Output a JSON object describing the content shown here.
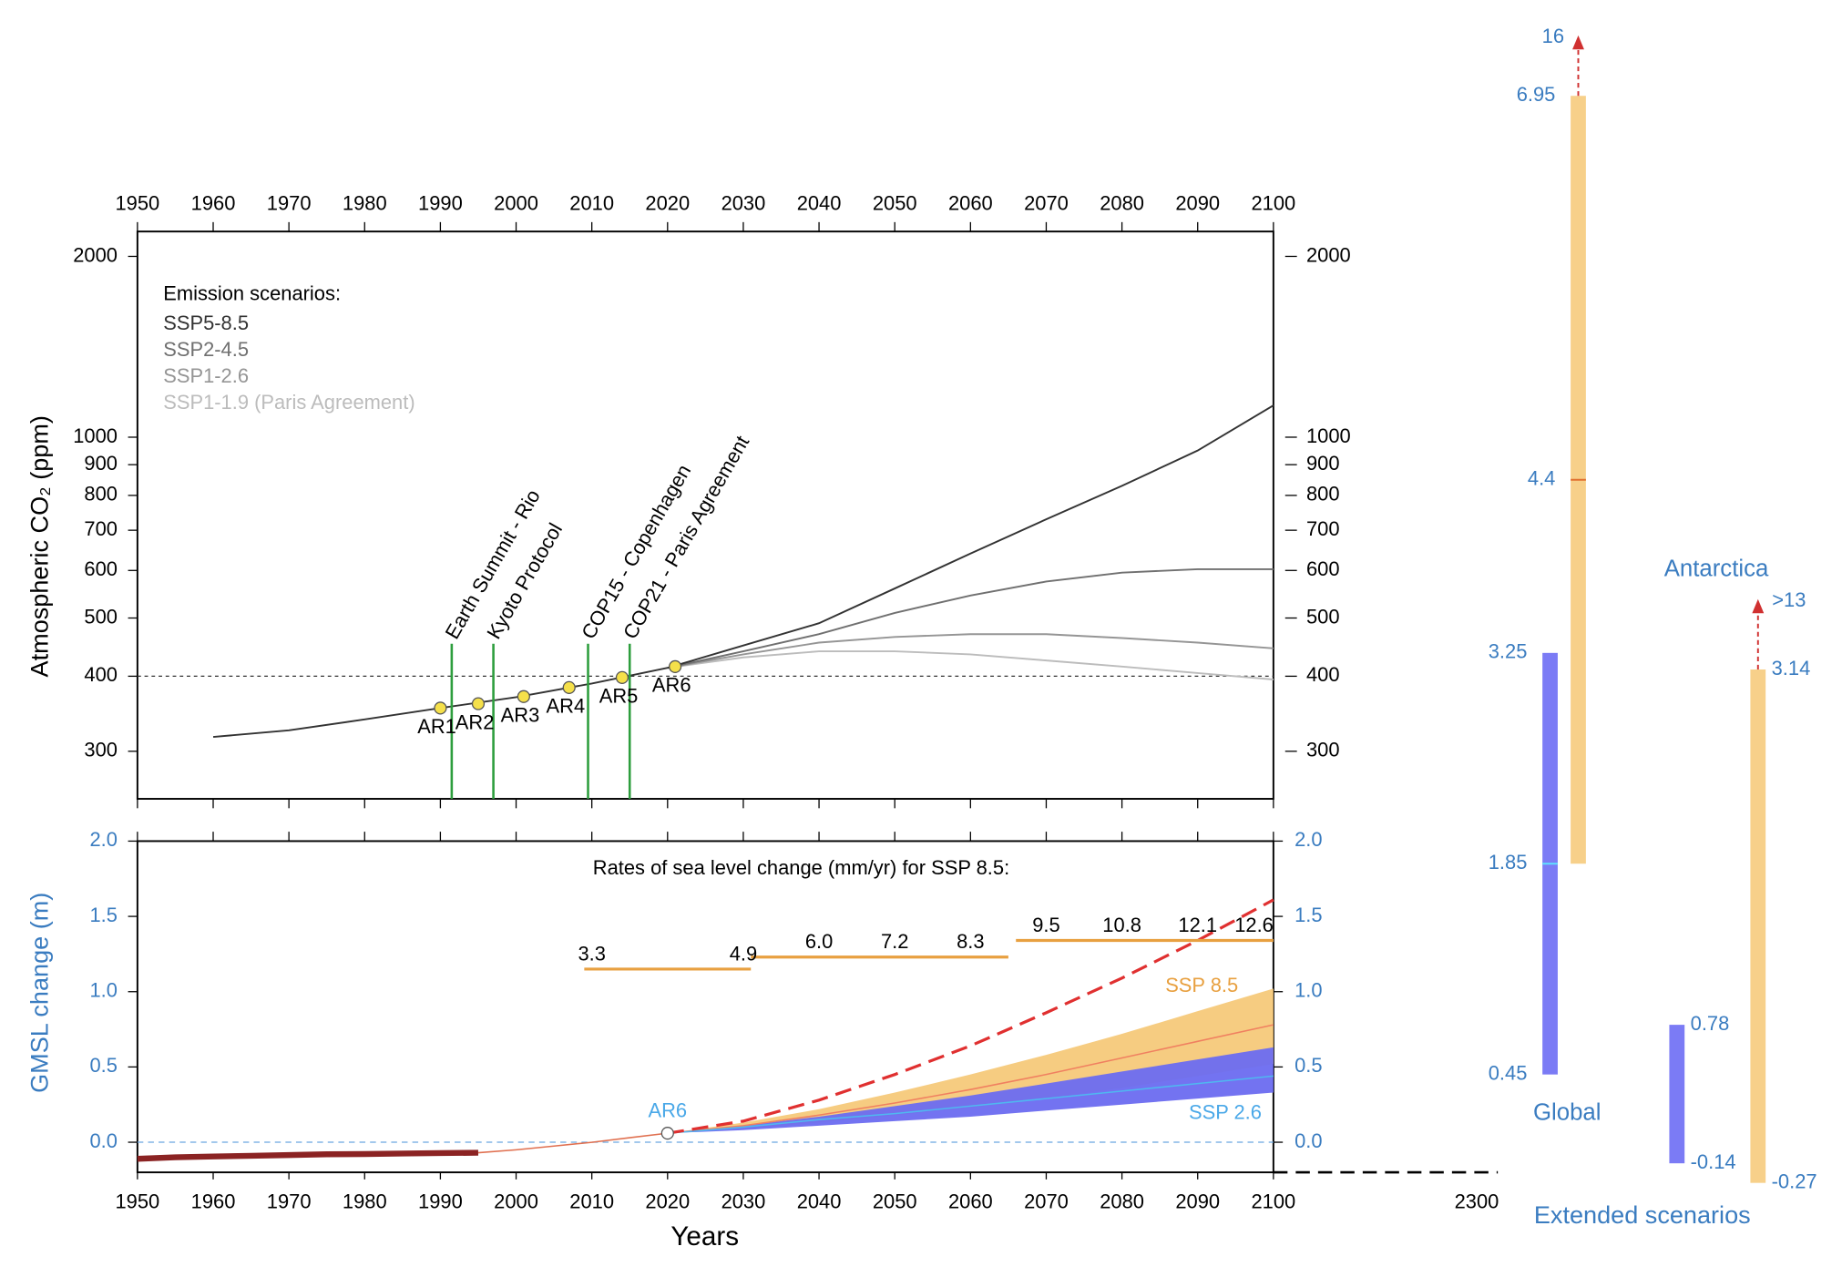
{
  "chart_data": [
    {
      "type": "line",
      "y_scale": "log",
      "ylabel": "Atmospheric CO₂ (ppm)",
      "xlim": [
        1950,
        2100
      ],
      "xticks": [
        1950,
        1960,
        1970,
        1980,
        1990,
        2000,
        2010,
        2020,
        2030,
        2040,
        2050,
        2060,
        2070,
        2080,
        2090,
        2100
      ],
      "ylim": [
        250,
        2200
      ],
      "yticks": [
        300,
        400,
        500,
        600,
        700,
        800,
        900,
        1000,
        2000
      ],
      "hline": 400,
      "legend_title": "Emission scenarios:",
      "x": [
        1960,
        1970,
        1980,
        1990,
        2000,
        2010,
        2020,
        2030,
        2040,
        2050,
        2060,
        2070,
        2080,
        2090,
        2100
      ],
      "series": [
        {
          "name": "SSP5-8.5",
          "color": "#333333",
          "values": [
            317,
            325,
            339,
            354,
            369,
            389,
            413,
            450,
            490,
            560,
            640,
            730,
            830,
            950,
            1130
          ]
        },
        {
          "name": "SSP2-4.5",
          "color": "#707070",
          "values": [
            null,
            null,
            null,
            null,
            null,
            null,
            413,
            440,
            470,
            510,
            545,
            575,
            595,
            603,
            603
          ]
        },
        {
          "name": "SSP1-2.6",
          "color": "#959595",
          "values": [
            null,
            null,
            null,
            null,
            null,
            null,
            413,
            435,
            455,
            465,
            470,
            470,
            463,
            455,
            445
          ]
        },
        {
          "name": "SSP1-1.9 (Paris Agreement)",
          "color": "#bcbcbc",
          "values": [
            null,
            null,
            null,
            null,
            null,
            null,
            413,
            430,
            440,
            440,
            435,
            425,
            415,
            405,
            395
          ]
        }
      ],
      "markers": {
        "color": "#f5e04a",
        "labels": [
          "AR1",
          "AR2",
          "AR3",
          "AR4",
          "AR5",
          "AR6"
        ],
        "x": [
          1990,
          1995,
          2001,
          2007,
          2014,
          2021
        ],
        "values": [
          354,
          360,
          370,
          383,
          398,
          415
        ]
      },
      "events": {
        "color": "#2e9e3e",
        "labels": [
          "Earth Summit - Rio",
          "Kyoto Protocol",
          "COP15 - Copenhagen",
          "COP21 - Paris Agreement"
        ],
        "x": [
          1991.5,
          1997,
          2009.5,
          2015
        ]
      }
    },
    {
      "type": "sea_level",
      "ylabel": "GMSL change (m)",
      "xlabel": "Years",
      "xlim": [
        1950,
        2100
      ],
      "xticks": [
        1950,
        1960,
        1970,
        1980,
        1990,
        2000,
        2010,
        2020,
        2030,
        2040,
        2050,
        2060,
        2070,
        2080,
        2090,
        2100
      ],
      "ylim": [
        -0.2,
        2.0
      ],
      "yticks": [
        {
          "value": 0,
          "label": "0.0"
        },
        0.5,
        {
          "value": 1,
          "label": "1.0"
        },
        1.5,
        {
          "value": 2,
          "label": "2.0"
        }
      ],
      "hline": 0,
      "observed": {
        "color": "#8b2323",
        "x": [
          1950,
          1955,
          1960,
          1965,
          1970,
          1975,
          1980,
          1985,
          1990,
          1995
        ],
        "values": [
          -0.11,
          -0.1,
          -0.095,
          -0.09,
          -0.085,
          -0.08,
          -0.078,
          -0.075,
          -0.072,
          -0.07
        ]
      },
      "reconstruction": {
        "color": "#e07050",
        "x": [
          1995,
          2000,
          2005,
          2010,
          2015,
          2020
        ],
        "values": [
          -0.07,
          -0.05,
          -0.025,
          0,
          0.03,
          0.06
        ]
      },
      "high_end": {
        "color": "#e03030",
        "x": [
          2020,
          2030,
          2040,
          2050,
          2060,
          2070,
          2080,
          2090,
          2100
        ],
        "values": [
          0.06,
          0.14,
          0.28,
          0.45,
          0.64,
          0.86,
          1.09,
          1.34,
          1.61
        ]
      },
      "series": [
        {
          "name": "SSP 8.5",
          "color": "#f5c97a",
          "line_color": "#f08060",
          "label_color": "#e8a040",
          "x": [
            2020,
            2030,
            2040,
            2050,
            2060,
            2070,
            2080,
            2090,
            2100
          ],
          "values": [
            0.06,
            0.11,
            0.18,
            0.26,
            0.35,
            0.45,
            0.56,
            0.67,
            0.78
          ],
          "lower": [
            0.06,
            0.09,
            0.13,
            0.18,
            0.23,
            0.29,
            0.36,
            0.44,
            0.52
          ],
          "upper": [
            0.06,
            0.13,
            0.22,
            0.33,
            0.45,
            0.58,
            0.72,
            0.87,
            1.02
          ]
        },
        {
          "name": "SSP 2.6",
          "color": "#6b6bf0",
          "line_color": "#4fb8f0",
          "label_color": "#4aa8e8",
          "x": [
            2020,
            2030,
            2040,
            2050,
            2060,
            2070,
            2080,
            2090,
            2100
          ],
          "values": [
            0.06,
            0.1,
            0.15,
            0.19,
            0.24,
            0.29,
            0.34,
            0.39,
            0.44
          ],
          "lower": [
            0.06,
            0.08,
            0.11,
            0.14,
            0.17,
            0.21,
            0.25,
            0.29,
            0.33
          ],
          "upper": [
            0.06,
            0.11,
            0.17,
            0.24,
            0.31,
            0.39,
            0.47,
            0.55,
            0.63
          ]
        }
      ],
      "ar6": {
        "label": "AR6",
        "x": 2020,
        "value": 0.06
      },
      "rates": {
        "title": "Rates of sea level change (mm/yr) for SSP 8.5:",
        "color": "#e8a040",
        "segments": [
          [
            2009,
            2031
          ],
          [
            2031,
            2065
          ],
          [
            2066,
            2100
          ]
        ],
        "years": [
          2010,
          2030,
          2040,
          2050,
          2060,
          2070,
          2080,
          2090,
          2100
        ],
        "rates": [
          3.3,
          4.9,
          {
            "value": 6,
            "label": "6.0"
          },
          7.2,
          8.3,
          9.5,
          10.8,
          12.1,
          12.6
        ]
      }
    },
    {
      "type": "range",
      "title": "Extended scenarios",
      "x_tick": 2300,
      "groups": [
        {
          "name": "Global",
          "bars": [
            {
              "color": "#7b7bf5",
              "low": 0.45,
              "high": 3.25,
              "median": 1.85,
              "median_color": "#60e0ff"
            },
            {
              "color": "#f7d08a",
              "low": 1.85,
              "high": 6.95,
              "median": 4.4,
              "median_color": "#e07030",
              "beyond": 16
            }
          ]
        },
        {
          "name": "Antarctica",
          "bars": [
            {
              "color": "#7b7bf5",
              "low": -0.14,
              "high": 0.78
            },
            {
              "color": "#f7d08a",
              "low": -0.27,
              "high": 3.14,
              "beyond": {
                "value": 13,
                "label": ">13"
              }
            }
          ]
        }
      ]
    }
  ]
}
